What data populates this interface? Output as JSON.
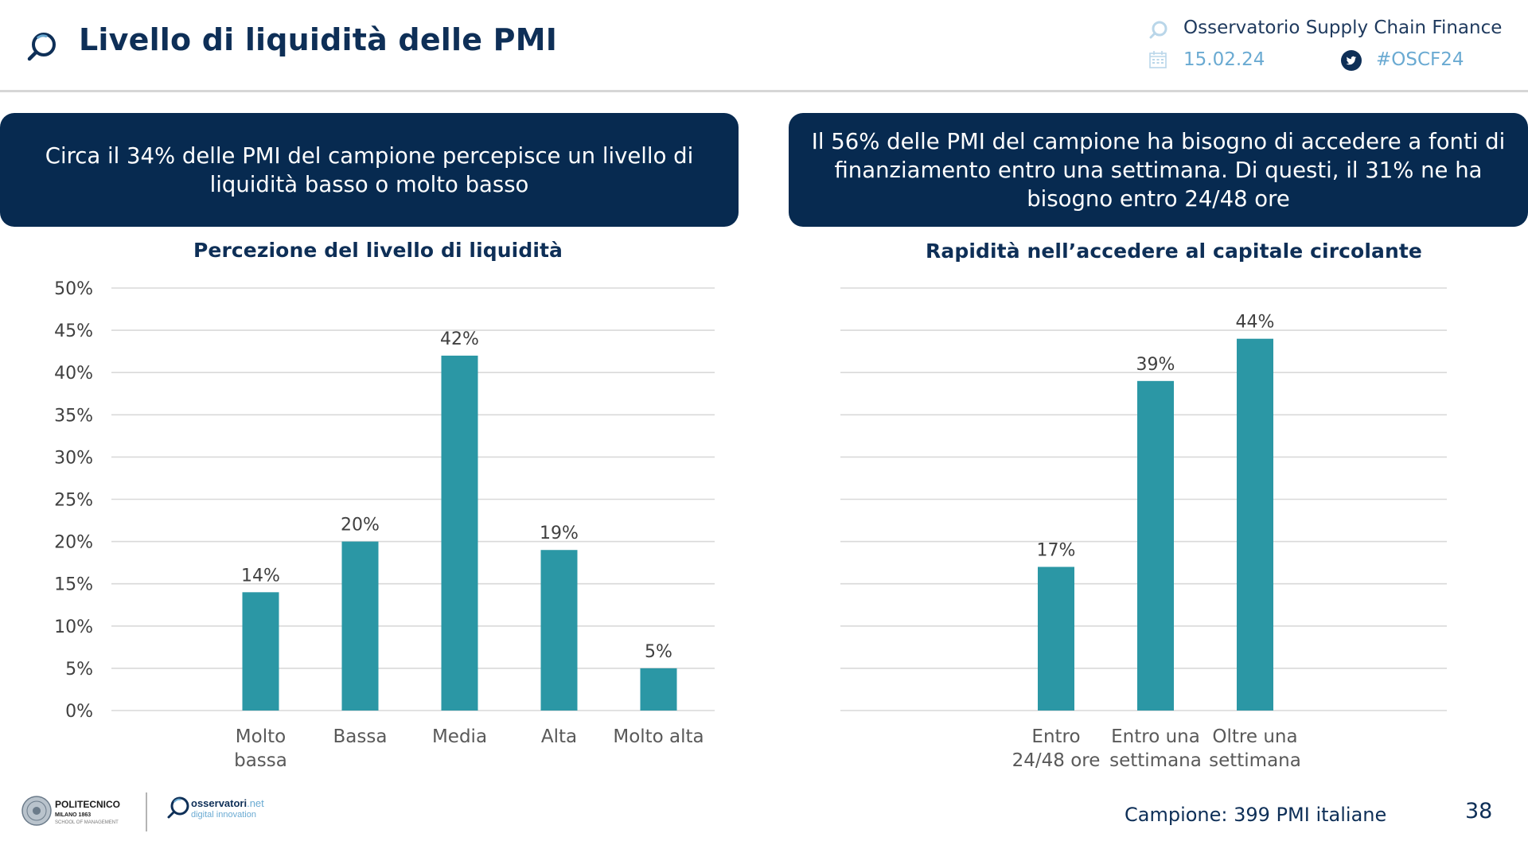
{
  "header": {
    "title": "Livello di liquidità delle PMI",
    "observatory": "Osservatorio Supply Chain Finance",
    "date": "15.02.24",
    "hashtag": "#OSCF24"
  },
  "callouts": {
    "left": "Circa il 34% delle PMI del campione percepisce un livello di liquidità basso o molto basso",
    "right": "Il 56% delle PMI del campione ha bisogno di accedere a fonti di finanziamento entro una settimana. Di questi, il 31% ne ha bisogno entro 24/48 ore"
  },
  "colors": {
    "bar": "#2b97a5",
    "grid": "#d9d9d9",
    "navy": "#072a50",
    "accent": "#6aaad2"
  },
  "chart_data": [
    {
      "type": "bar",
      "title": "Percezione del livello di liquidità",
      "categories": [
        [
          "Molto",
          "bassa"
        ],
        [
          "Bassa"
        ],
        [
          "Media"
        ],
        [
          "Alta"
        ],
        [
          "Molto alta"
        ]
      ],
      "values": [
        14,
        20,
        42,
        19,
        5
      ],
      "value_labels": [
        "14%",
        "20%",
        "42%",
        "19%",
        "5%"
      ],
      "yticks": [
        "0%",
        "5%",
        "10%",
        "15%",
        "20%",
        "25%",
        "30%",
        "35%",
        "40%",
        "45%",
        "50%"
      ],
      "ylim": [
        0,
        50
      ],
      "grid": true,
      "xlabel": "",
      "ylabel": ""
    },
    {
      "type": "bar",
      "title": "Rapidità nell’accedere al capitale circolante",
      "categories": [
        [
          "Entro",
          "24/48 ore"
        ],
        [
          "Entro una",
          "settimana"
        ],
        [
          "Oltre una",
          "settimana"
        ]
      ],
      "values": [
        17,
        39,
        44
      ],
      "value_labels": [
        "17%",
        "39%",
        "44%"
      ],
      "ylim": [
        0,
        50
      ],
      "grid": true,
      "xlabel": "",
      "ylabel": ""
    }
  ],
  "footer": {
    "university": "POLITECNICO",
    "university_sub": "MILANO 1863",
    "school": "SCHOOL OF MANAGEMENT",
    "osservatori": "osservatori",
    "osservatori_net": ".net",
    "osservatori_sub": "digital innovation",
    "sample": "Campione: 399 PMI italiane",
    "page": "38"
  }
}
